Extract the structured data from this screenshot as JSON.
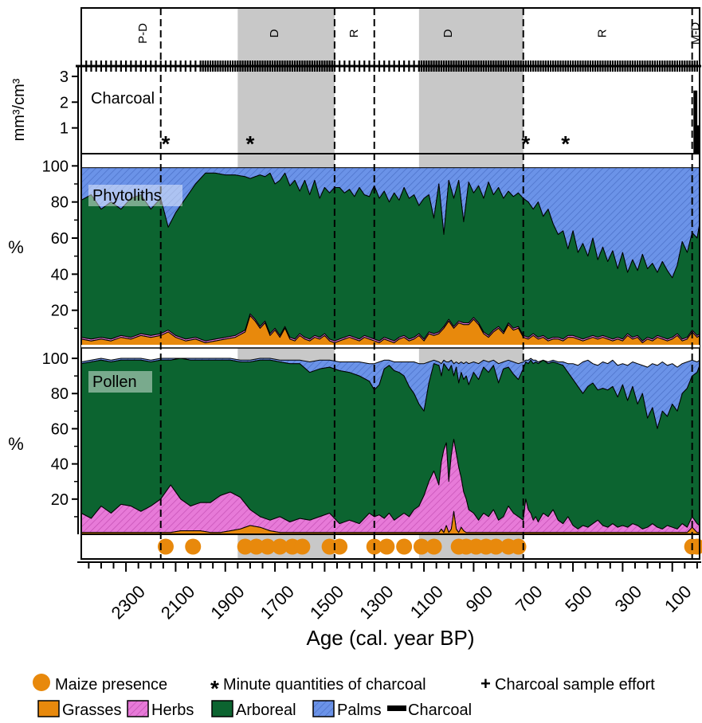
{
  "chart_data": {
    "type": "area",
    "x_axis": {
      "label": "Age (cal. year BP)",
      "range": [
        2480,
        -10
      ],
      "ticks": [
        2300,
        2100,
        1900,
        1700,
        1500,
        1300,
        1100,
        900,
        700,
        500,
        300,
        100
      ],
      "minor_step": 50
    },
    "zones": [
      {
        "label": "P-D",
        "from": 2480,
        "to": 2160,
        "shaded": false
      },
      {
        "label": "D",
        "from": 2160,
        "to": 1460,
        "shaded": false
      },
      {
        "label": "D",
        "from": 1850,
        "to": 1460,
        "shaded": true
      },
      {
        "label": "R",
        "from": 1460,
        "to": 1300,
        "shaded": false
      },
      {
        "label": "D",
        "from": 1300,
        "to": 700,
        "shaded": false
      },
      {
        "label": "D",
        "from": 1120,
        "to": 700,
        "shaded": true
      },
      {
        "label": "R",
        "from": 700,
        "to": 20,
        "shaded": false
      },
      {
        "label": "M-D",
        "from": 20,
        "to": -10,
        "shaded": false
      }
    ],
    "zone_labels": [
      {
        "text": "P-D",
        "age": 2230
      },
      {
        "text": "D",
        "age": 1700
      },
      {
        "text": "R",
        "age": 1380
      },
      {
        "text": "D",
        "age": 1000
      },
      {
        "text": "R",
        "age": 380
      },
      {
        "text": "M-D",
        "age": 5
      }
    ],
    "zone_boundaries": [
      2160,
      1460,
      1300,
      700,
      20
    ],
    "shaded_ranges": [
      [
        1850,
        1460
      ],
      [
        1120,
        700
      ]
    ],
    "charcoal_sample_effort_ages": [
      2460,
      2440,
      2420,
      2400,
      2380,
      2360,
      2340,
      2320,
      2300,
      2280,
      2260,
      2240,
      2220,
      2200,
      2180,
      2160,
      2140,
      2120,
      2100,
      2080,
      2060,
      2040,
      2020,
      2000,
      1990,
      1980,
      1970,
      1960,
      1950,
      1940,
      1930,
      1920,
      1910,
      1900,
      1890,
      1880,
      1870,
      1860,
      1850,
      1840,
      1830,
      1820,
      1810,
      1800,
      1790,
      1780,
      1770,
      1760,
      1750,
      1740,
      1730,
      1720,
      1710,
      1700,
      1690,
      1680,
      1670,
      1660,
      1650,
      1640,
      1630,
      1620,
      1610,
      1600,
      1590,
      1580,
      1570,
      1560,
      1550,
      1540,
      1530,
      1520,
      1510,
      1500,
      1490,
      1480,
      1470,
      1460,
      1440,
      1420,
      1400,
      1380,
      1360,
      1340,
      1320,
      1300,
      1280,
      1260,
      1240,
      1220,
      1200,
      1180,
      1160,
      1140,
      1120,
      1110,
      1100,
      1090,
      1080,
      1070,
      1060,
      1050,
      1040,
      1030,
      1020,
      1010,
      1000,
      990,
      980,
      970,
      960,
      950,
      940,
      930,
      920,
      910,
      900,
      890,
      880,
      870,
      860,
      850,
      840,
      830,
      820,
      810,
      800,
      790,
      780,
      770,
      760,
      750,
      740,
      730,
      720,
      710,
      700,
      690,
      680,
      670,
      660,
      650,
      640,
      630,
      620,
      610,
      600,
      590,
      580,
      570,
      560,
      550,
      540,
      530,
      520,
      510,
      500,
      490,
      480,
      470,
      460,
      450,
      440,
      430,
      420,
      410,
      400,
      390,
      380,
      370,
      360,
      350,
      340,
      330,
      320,
      310,
      300,
      290,
      280,
      270,
      260,
      250,
      240,
      230,
      220,
      210,
      200,
      190,
      180,
      170,
      160,
      150,
      140,
      130,
      120,
      110,
      100,
      90,
      80,
      70,
      60,
      50,
      40,
      30,
      20,
      10,
      0
    ],
    "charcoal": {
      "panel_label": "Charcoal",
      "ylabel": "mm³/cm³",
      "yticks": [
        1,
        2,
        3
      ],
      "ylim": [
        0,
        3.4
      ],
      "bars": [
        {
          "age": 10,
          "value": 2.45
        },
        {
          "age": 4,
          "value": 2.45
        },
        {
          "age": -2,
          "value": 1.1
        }
      ],
      "minute_quantities_ages": [
        2140,
        1800,
        690,
        530
      ]
    },
    "phytoliths": {
      "panel_label": "Phytoliths",
      "ylabel": "%",
      "yticks": [
        20,
        40,
        60,
        80,
        100
      ],
      "ylim": [
        0,
        105
      ],
      "ages": [
        2480,
        2440,
        2400,
        2360,
        2320,
        2280,
        2240,
        2200,
        2160,
        2130,
        2100,
        2060,
        2020,
        1980,
        1940,
        1900,
        1860,
        1820,
        1800,
        1780,
        1760,
        1740,
        1720,
        1700,
        1680,
        1660,
        1640,
        1620,
        1600,
        1580,
        1560,
        1540,
        1520,
        1500,
        1480,
        1460,
        1440,
        1420,
        1400,
        1380,
        1360,
        1340,
        1320,
        1300,
        1280,
        1260,
        1240,
        1220,
        1200,
        1180,
        1160,
        1140,
        1120,
        1100,
        1080,
        1060,
        1040,
        1020,
        1000,
        980,
        960,
        940,
        920,
        900,
        880,
        860,
        840,
        820,
        800,
        780,
        760,
        740,
        720,
        700,
        680,
        660,
        640,
        620,
        600,
        580,
        560,
        540,
        520,
        500,
        480,
        460,
        440,
        420,
        400,
        380,
        360,
        340,
        320,
        300,
        280,
        260,
        240,
        220,
        200,
        180,
        160,
        140,
        120,
        100,
        80,
        60,
        40,
        20,
        0,
        -10
      ],
      "grasses": [
        4,
        3,
        4,
        3,
        5,
        4,
        6,
        5,
        6,
        8,
        5,
        3,
        4,
        2,
        3,
        4,
        5,
        8,
        17,
        14,
        10,
        13,
        6,
        9,
        5,
        10,
        4,
        3,
        6,
        4,
        3,
        5,
        4,
        6,
        3,
        2,
        3,
        4,
        5,
        4,
        3,
        5,
        4,
        3,
        2,
        4,
        3,
        2,
        4,
        5,
        3,
        4,
        6,
        3,
        7,
        6,
        7,
        10,
        14,
        10,
        13,
        12,
        12,
        15,
        12,
        7,
        5,
        8,
        10,
        7,
        12,
        9,
        10,
        5,
        4,
        6,
        4,
        5,
        3,
        4,
        4,
        3,
        5,
        5,
        4,
        3,
        4,
        5,
        4,
        5,
        4,
        3,
        4,
        3,
        6,
        4,
        5,
        2,
        4,
        3,
        5,
        4,
        3,
        4,
        6,
        3,
        4,
        8,
        5,
        6
      ],
      "grasses_herbs": [
        5,
        4,
        5,
        4,
        6,
        5,
        7,
        6,
        7,
        9,
        6,
        4,
        5,
        3,
        4,
        5,
        6,
        9,
        18,
        15,
        11,
        14,
        7,
        10,
        6,
        11,
        5,
        4,
        7,
        5,
        4,
        6,
        5,
        7,
        4,
        3,
        4,
        5,
        6,
        5,
        4,
        6,
        5,
        4,
        3,
        5,
        4,
        3,
        5,
        6,
        4,
        5,
        7,
        4,
        8,
        7,
        8,
        11,
        15,
        11,
        14,
        13,
        13,
        16,
        13,
        8,
        6,
        9,
        11,
        8,
        13,
        10,
        11,
        6,
        5,
        7,
        5,
        6,
        4,
        5,
        5,
        4,
        6,
        6,
        5,
        4,
        5,
        6,
        5,
        6,
        5,
        4,
        5,
        4,
        7,
        5,
        6,
        3,
        5,
        4,
        6,
        5,
        4,
        5,
        7,
        4,
        5,
        9,
        6,
        7
      ],
      "arboreal_cum": [
        81,
        84,
        76,
        80,
        76,
        82,
        84,
        76,
        82,
        66,
        74,
        82,
        90,
        96,
        96,
        95,
        95,
        94,
        93,
        94,
        95,
        94,
        96,
        90,
        92,
        96,
        89,
        92,
        86,
        92,
        84,
        92,
        82,
        88,
        85,
        88,
        88,
        85,
        87,
        83,
        88,
        84,
        83,
        89,
        82,
        86,
        80,
        85,
        81,
        88,
        82,
        84,
        78,
        82,
        84,
        71,
        90,
        62,
        92,
        82,
        92,
        69,
        91,
        85,
        89,
        82,
        91,
        84,
        88,
        82,
        86,
        83,
        85,
        82,
        80,
        76,
        80,
        72,
        76,
        68,
        62,
        64,
        54,
        64,
        52,
        57,
        50,
        60,
        48,
        55,
        47,
        53,
        43,
        52,
        41,
        48,
        42,
        51,
        43,
        46,
        41,
        47,
        42,
        38,
        45,
        58,
        52,
        63,
        60,
        68
      ],
      "palms_cum": [
        99,
        99,
        99,
        99,
        99,
        99,
        99,
        99,
        99,
        99,
        99,
        99,
        99,
        99,
        99,
        99,
        99,
        99,
        99,
        99,
        99,
        99,
        99,
        99,
        99,
        99,
        99,
        99,
        99,
        99,
        99,
        99,
        99,
        99,
        99,
        99,
        99,
        99,
        99,
        99,
        99,
        99,
        99,
        99,
        99,
        99,
        99,
        99,
        99,
        99,
        99,
        99,
        99,
        99,
        99,
        99,
        99,
        99,
        99,
        99,
        99,
        99,
        99,
        99,
        99,
        99,
        99,
        99,
        99,
        99,
        99,
        99,
        99,
        99,
        99,
        99,
        99,
        99,
        99,
        99,
        99,
        99,
        99,
        99,
        99,
        99,
        99,
        99,
        99,
        99,
        99,
        99,
        99,
        99,
        99,
        99,
        99,
        99,
        99,
        99,
        99,
        99,
        99,
        99,
        99,
        99,
        99,
        99,
        99,
        99
      ]
    },
    "pollen": {
      "panel_label": "Pollen",
      "ylabel": "%",
      "yticks": [
        20,
        40,
        60,
        80,
        100
      ],
      "ylim": [
        0,
        105
      ],
      "ages": [
        2480,
        2440,
        2400,
        2360,
        2320,
        2280,
        2240,
        2200,
        2160,
        2120,
        2080,
        2040,
        2000,
        1960,
        1920,
        1880,
        1840,
        1800,
        1760,
        1720,
        1680,
        1640,
        1600,
        1560,
        1520,
        1480,
        1440,
        1400,
        1360,
        1320,
        1300,
        1280,
        1260,
        1240,
        1220,
        1200,
        1180,
        1160,
        1140,
        1120,
        1100,
        1080,
        1060,
        1040,
        1030,
        1020,
        1010,
        1000,
        990,
        980,
        970,
        960,
        950,
        940,
        930,
        920,
        900,
        880,
        860,
        840,
        820,
        800,
        780,
        760,
        740,
        720,
        700,
        690,
        680,
        670,
        660,
        650,
        640,
        620,
        600,
        580,
        560,
        540,
        520,
        500,
        480,
        460,
        440,
        420,
        400,
        380,
        360,
        340,
        320,
        300,
        280,
        260,
        240,
        220,
        200,
        180,
        160,
        140,
        120,
        100,
        80,
        60,
        40,
        20,
        0,
        -10
      ],
      "grasses": [
        1,
        1,
        1,
        1,
        1,
        1,
        1,
        1,
        1,
        1,
        2,
        2,
        2,
        1,
        1,
        2,
        3,
        5,
        4,
        2,
        1,
        1,
        1,
        1,
        1,
        1,
        1,
        1,
        1,
        1,
        1,
        1,
        1,
        1,
        1,
        1,
        1,
        1,
        1,
        1,
        1,
        1,
        1,
        1,
        3,
        1,
        5,
        1,
        3,
        13,
        3,
        1,
        4,
        2,
        1,
        1,
        1,
        1,
        1,
        1,
        1,
        1,
        1,
        1,
        1,
        1,
        1,
        1,
        1,
        1,
        1,
        1,
        1,
        1,
        1,
        1,
        1,
        1,
        1,
        1,
        1,
        1,
        1,
        1,
        1,
        1,
        1,
        1,
        1,
        1,
        1,
        1,
        1,
        1,
        1,
        1,
        1,
        1,
        1,
        1,
        1,
        1,
        1,
        4,
        1,
        1
      ],
      "grasses_herbs": [
        12,
        9,
        16,
        12,
        17,
        16,
        13,
        16,
        20,
        28,
        20,
        16,
        18,
        18,
        22,
        24,
        21,
        14,
        10,
        8,
        10,
        7,
        9,
        8,
        10,
        12,
        6,
        8,
        6,
        12,
        10,
        11,
        9,
        12,
        8,
        10,
        12,
        10,
        14,
        16,
        22,
        30,
        36,
        28,
        41,
        48,
        52,
        30,
        45,
        54,
        46,
        38,
        32,
        24,
        20,
        14,
        12,
        8,
        12,
        10,
        14,
        8,
        10,
        16,
        12,
        10,
        8,
        20,
        14,
        12,
        8,
        10,
        7,
        12,
        10,
        14,
        8,
        6,
        10,
        5,
        3,
        5,
        4,
        6,
        8,
        5,
        4,
        6,
        4,
        5,
        4,
        6,
        5,
        3,
        4,
        6,
        4,
        3,
        5,
        4,
        3,
        6,
        4,
        10,
        6,
        5
      ],
      "arboreal_cum": [
        97,
        98,
        99,
        98,
        99,
        99,
        99,
        98,
        99,
        99,
        100,
        99,
        99,
        99,
        99,
        99,
        98,
        98,
        99,
        99,
        98,
        97,
        97,
        92,
        94,
        95,
        93,
        92,
        90,
        87,
        82,
        85,
        94,
        96,
        93,
        92,
        90,
        84,
        80,
        74,
        70,
        86,
        97,
        96,
        90,
        97,
        95,
        93,
        96,
        90,
        95,
        86,
        92,
        88,
        90,
        85,
        92,
        88,
        95,
        92,
        96,
        86,
        94,
        95,
        91,
        88,
        94,
        98,
        97,
        99,
        97,
        98,
        97,
        99,
        97,
        98,
        97,
        96,
        92,
        88,
        84,
        80,
        84,
        86,
        82,
        83,
        82,
        84,
        78,
        85,
        76,
        84,
        74,
        80,
        66,
        72,
        60,
        70,
        67,
        74,
        70,
        80,
        83,
        90,
        92,
        96
      ],
      "palms_cum": [
        98,
        99,
        100,
        99,
        100,
        100,
        100,
        99,
        100,
        100,
        100,
        100,
        100,
        100,
        100,
        100,
        99,
        99,
        100,
        100,
        99,
        99,
        99,
        98,
        99,
        99,
        98,
        98,
        98,
        97,
        97,
        98,
        99,
        99,
        98,
        98,
        98,
        98,
        98,
        97,
        97,
        98,
        99,
        98,
        97,
        99,
        98,
        98,
        99,
        97,
        98,
        97,
        98,
        97,
        98,
        97,
        98,
        97,
        99,
        98,
        99,
        97,
        98,
        99,
        98,
        97,
        98,
        99,
        99,
        100,
        99,
        99,
        98,
        99,
        98,
        99,
        98,
        98,
        97,
        97,
        96,
        98,
        99,
        97,
        96,
        98,
        97,
        99,
        96,
        97,
        96,
        98,
        97,
        96,
        95,
        97,
        96,
        98,
        96,
        97,
        95,
        97,
        98,
        99,
        98,
        99
      ]
    },
    "maize_presence_ages": [
      2140,
      2030,
      1820,
      1775,
      1730,
      1680,
      1630,
      1590,
      1480,
      1440,
      1300,
      1250,
      1180,
      1110,
      1060,
      960,
      930,
      890,
      850,
      810,
      760,
      720,
      20,
      0
    ],
    "legend": [
      {
        "label": "Maize presence",
        "symbol": "circle",
        "color": "#e8890c"
      },
      {
        "label": "Minute quantities of charcoal",
        "symbol": "asterisk",
        "color": "#000000"
      },
      {
        "label": "Charcoal sample effort",
        "symbol": "plus",
        "color": "#000000"
      },
      {
        "label": "Grasses",
        "symbol": "box",
        "color": "#e8890c"
      },
      {
        "label": "Herbs",
        "symbol": "hatched-box",
        "color": "#e77ad8"
      },
      {
        "label": "Arboreal",
        "symbol": "box",
        "color": "#0c6430"
      },
      {
        "label": "Palms",
        "symbol": "hatched-box",
        "color": "#6b93e8"
      },
      {
        "label": "Charcoal",
        "symbol": "line",
        "color": "#000000"
      }
    ],
    "colors": {
      "grasses": "#e8890c",
      "herbs": "#e77ad8",
      "arboreal": "#0c6430",
      "palms": "#6b93e8",
      "zone_shade": "#c8c8c8",
      "maize": "#e8890c"
    }
  }
}
